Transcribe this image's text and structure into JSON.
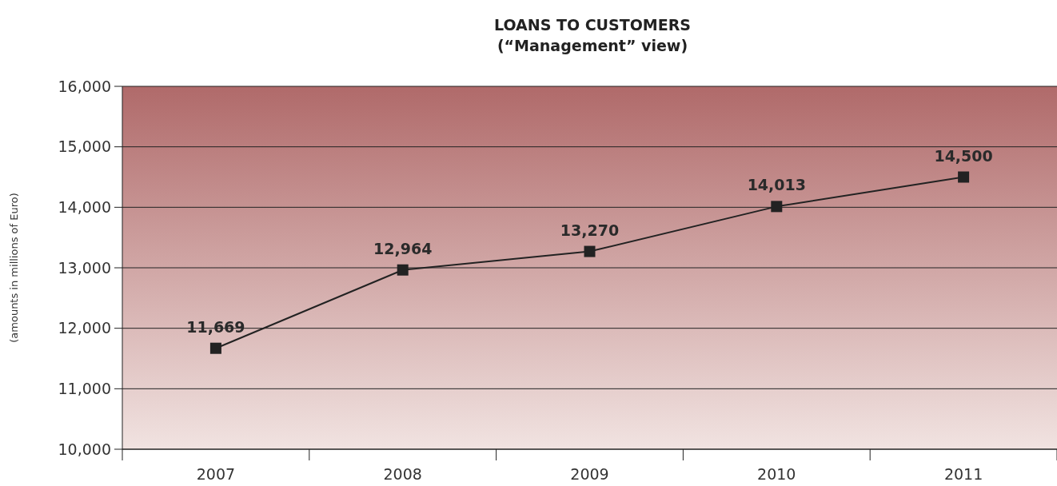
{
  "chart_data": {
    "type": "line",
    "title": "LOANS TO CUSTOMERS",
    "subtitle": "(“Management” view)",
    "ylabel": "(amounts in millions of Euro)",
    "categories": [
      "2007",
      "2008",
      "2009",
      "2010",
      "2011"
    ],
    "series": [
      {
        "color": "#222222",
        "values": [
          11669,
          12964,
          13270,
          14013,
          14500
        ],
        "value_labels": [
          "11,669",
          "12,964",
          "13,270",
          "14,013",
          "14,500"
        ]
      }
    ],
    "ylim": [
      10000,
      16000
    ],
    "yticks": [
      {
        "value": 10000,
        "label": "10,000"
      },
      {
        "value": 11000,
        "label": "11,000"
      },
      {
        "value": 12000,
        "label": "12,000"
      },
      {
        "value": 13000,
        "label": "13,000"
      },
      {
        "value": 14000,
        "label": "14,000"
      },
      {
        "value": 15000,
        "label": "15,000"
      },
      {
        "value": 16000,
        "label": "16,000"
      }
    ],
    "grid": "y",
    "marker": "square",
    "line_style": "solid"
  }
}
